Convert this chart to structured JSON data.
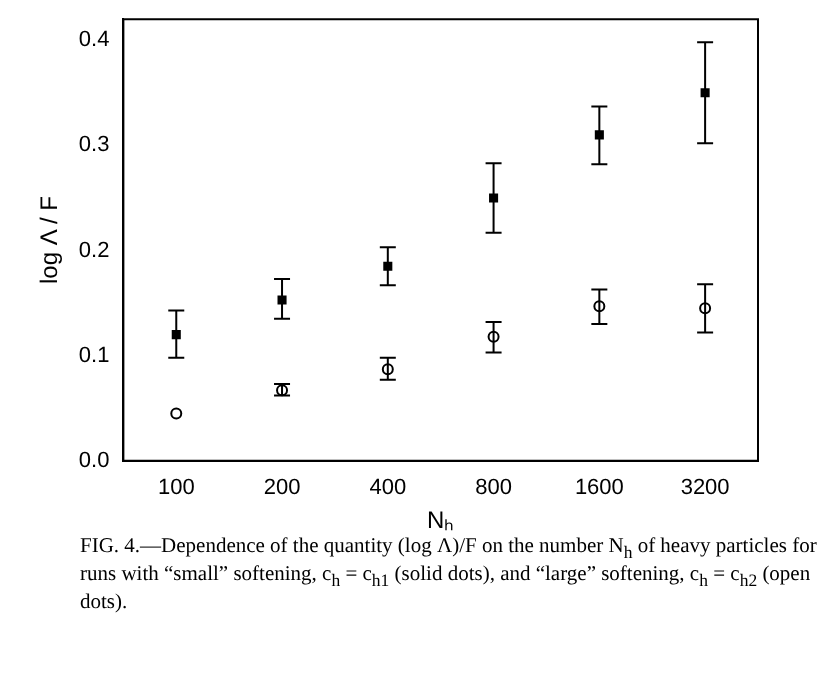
{
  "chart_data": {
    "type": "scatter",
    "xlabel": "Nₕ",
    "ylabel": "log Λ / F",
    "categories": [
      "100",
      "200",
      "400",
      "800",
      "1600",
      "3200"
    ],
    "ylim": [
      0,
      0.42
    ],
    "yticks": [
      {
        "value": 0,
        "label": "0.0"
      },
      {
        "value": 0.1,
        "label": "0.1"
      },
      {
        "value": 0.2,
        "label": "0.2"
      },
      {
        "value": 0.3,
        "label": "0.3"
      },
      {
        "value": 0.4,
        "label": "0.4"
      }
    ],
    "grid": false,
    "legend": false,
    "series": [
      {
        "color": "#000000",
        "marker": "square",
        "values": [
          0.12,
          0.153,
          0.185,
          0.25,
          0.31,
          0.35
        ],
        "errors": [
          [
            0.098,
            0.143
          ],
          [
            0.135,
            0.173
          ],
          [
            0.167,
            0.203
          ],
          [
            0.217,
            0.283
          ],
          [
            0.282,
            0.337
          ],
          [
            0.302,
            0.398
          ]
        ]
      },
      {
        "color": "#000000",
        "marker": "circle",
        "values": [
          0.045,
          0.067,
          0.087,
          0.118,
          0.147,
          0.145
        ],
        "errors": [
          null,
          [
            0.062,
            0.073
          ],
          [
            0.077,
            0.098
          ],
          [
            0.103,
            0.132
          ],
          [
            0.13,
            0.163
          ],
          [
            0.122,
            0.168
          ]
        ]
      }
    ],
    "annotations": [
      "FIG. 4.—Dependence of the quantity (log Λ)/F on the number N$_{h}$ of heavy particles for runs with “small” softening, c$_{h}$ = c$_{h1}$ (solid dots), and “large” softening, c$_{h}$ = c$_{h2}$ (open dots)."
    ]
  }
}
